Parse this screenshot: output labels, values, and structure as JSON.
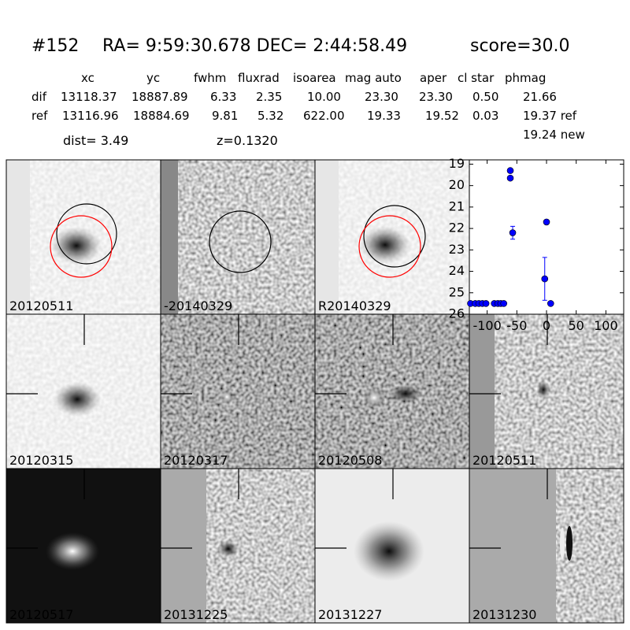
{
  "header": {
    "id": "#152",
    "coords": "RA= 9:59:30.678 DEC= 2:44:58.49",
    "score": "score=30.0"
  },
  "table": {
    "columns": [
      "xc",
      "yc",
      "fwhm",
      "fluxrad",
      "isoarea",
      "mag auto",
      "aper",
      "cl star",
      "phmag"
    ],
    "rows": [
      {
        "label": "dif",
        "cells": [
          "13118.37",
          "18887.89",
          "6.33",
          "2.35",
          "10.00",
          "23.30",
          "23.30",
          "0.50",
          "21.66"
        ]
      },
      {
        "label": "ref",
        "cells": [
          "13116.96",
          "18884.69",
          "9.81",
          "5.32",
          "622.00",
          "19.33",
          "19.52",
          "0.03",
          "19.37 ref"
        ]
      }
    ],
    "extra": "19.24 new"
  },
  "dist": "dist=  3.49",
  "z": "z=0.1320",
  "panels": [
    {
      "label": "20120511"
    },
    {
      "label": "-20140329"
    },
    {
      "label": "R20140329"
    },
    {
      "label": "20120315"
    },
    {
      "label": "20120317"
    },
    {
      "label": "20120508"
    },
    {
      "label": "20120511",
      "color": "#ff0000"
    },
    {
      "label": "20120517"
    },
    {
      "label": "20131225"
    },
    {
      "label": "20131227"
    },
    {
      "label": "20131230"
    }
  ],
  "chart_data": {
    "type": "scatter",
    "color": "#0000ff",
    "x": [
      -128,
      -120,
      -114,
      -108,
      -102,
      -88,
      -82,
      -77,
      -72,
      -61,
      -61,
      -57,
      0,
      -3,
      7
    ],
    "values": [
      25.5,
      25.5,
      25.5,
      25.5,
      25.5,
      25.5,
      25.5,
      25.5,
      25.5,
      19.3,
      19.65,
      22.2,
      21.7,
      24.35,
      25.5
    ],
    "errors": [
      null,
      null,
      null,
      null,
      null,
      null,
      null,
      null,
      null,
      null,
      null,
      0.3,
      0.1,
      1.0,
      null
    ],
    "xlim": [
      -130,
      130
    ],
    "ylim": [
      26,
      18.8
    ],
    "xticks": [
      -100,
      -50,
      0,
      50,
      100
    ],
    "yticks": [
      19,
      20,
      21,
      22,
      23,
      24,
      25,
      26
    ]
  }
}
